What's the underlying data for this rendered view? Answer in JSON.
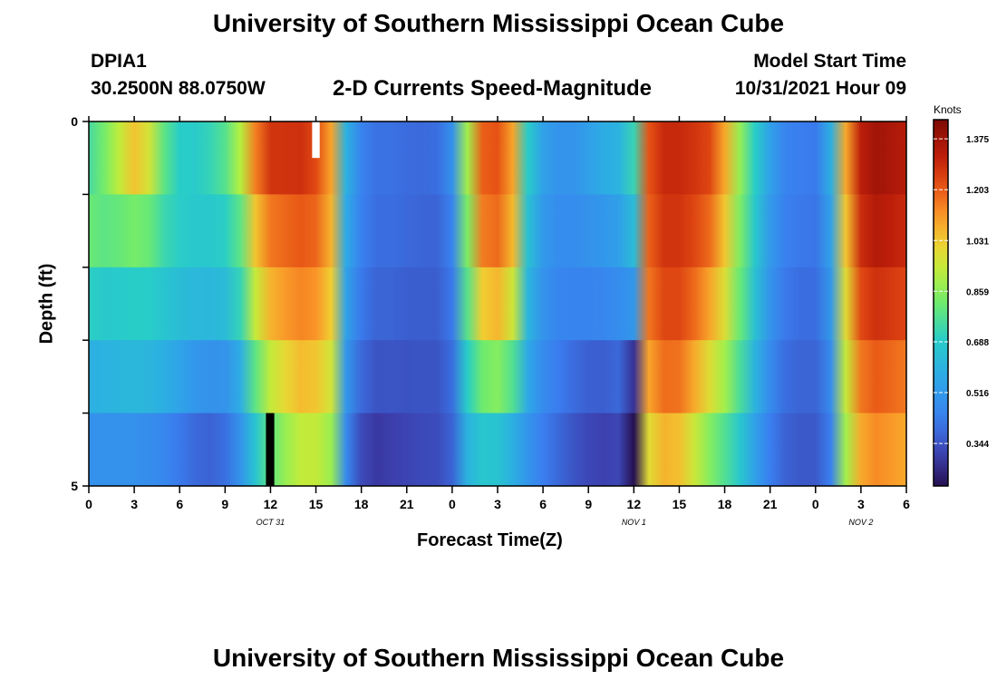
{
  "page": {
    "title": "University of Southern Mississippi Ocean Cube",
    "footer_title": "University of Southern Mississippi Ocean Cube"
  },
  "station": {
    "id": "DPIA1",
    "coords": "30.2500N  88.0750W"
  },
  "model": {
    "label": "Model Start Time",
    "value": "10/31/2021 Hour 09"
  },
  "chart_data": {
    "type": "heatmap",
    "title": "2-D Currents Speed-Magnitude",
    "xlabel": "Forecast Time(Z)",
    "ylabel": "Depth (ft)",
    "x_hours_since_start": [
      0,
      54
    ],
    "x_ticks": [
      "0",
      "3",
      "6",
      "9",
      "12",
      "15",
      "18",
      "21",
      "0",
      "3",
      "6",
      "9",
      "12",
      "15",
      "18",
      "21",
      "0",
      "3",
      "6"
    ],
    "date_labels": [
      {
        "label": "OCT 31",
        "hour": 12
      },
      {
        "label": "NOV 1",
        "hour": 36
      },
      {
        "label": "NOV 2",
        "hour": 51
      }
    ],
    "y_range_ft": [
      0,
      5
    ],
    "y_tick_labels": [
      "0",
      "5"
    ],
    "depth_levels_ft": [
      0,
      1,
      2,
      3,
      4,
      5
    ],
    "colorbar": {
      "label": "Knots",
      "ticks": [
        "1.375",
        "1.203",
        "1.031",
        "0.859",
        "0.688",
        "0.516",
        "0.344"
      ],
      "tick_values": [
        1.375,
        1.203,
        1.031,
        0.859,
        0.688,
        0.516,
        0.344
      ],
      "range": [
        0.2,
        1.44
      ]
    },
    "hours": [
      0,
      1,
      2,
      3,
      4,
      5,
      6,
      7,
      8,
      9,
      10,
      11,
      12,
      13,
      14,
      15,
      16,
      17,
      18,
      19,
      20,
      21,
      22,
      23,
      24,
      25,
      26,
      27,
      28,
      29,
      30,
      31,
      32,
      33,
      34,
      35,
      36,
      37,
      38,
      39,
      40,
      41,
      42,
      43,
      44,
      45,
      46,
      47,
      48,
      49,
      50,
      51,
      52,
      53,
      54
    ],
    "speed_knots_by_depth": [
      [
        0.72,
        0.83,
        0.96,
        1.1,
        1.0,
        0.8,
        0.69,
        0.69,
        0.73,
        0.8,
        0.95,
        1.18,
        1.3,
        1.3,
        1.3,
        1.24,
        1.1,
        0.6,
        0.45,
        0.4,
        0.4,
        0.39,
        0.39,
        0.4,
        0.5,
        0.9,
        1.2,
        1.22,
        1.1,
        0.7,
        0.55,
        0.5,
        0.5,
        0.55,
        0.6,
        0.62,
        0.75,
        1.22,
        1.3,
        1.3,
        1.28,
        1.25,
        1.1,
        0.88,
        0.7,
        0.55,
        0.45,
        0.43,
        0.42,
        0.6,
        1.1,
        1.33,
        1.38,
        1.36,
        1.34
      ],
      [
        0.84,
        0.82,
        0.84,
        0.87,
        0.84,
        0.75,
        0.71,
        0.69,
        0.69,
        0.71,
        0.8,
        1.06,
        1.18,
        1.2,
        1.22,
        1.2,
        1.08,
        0.58,
        0.44,
        0.4,
        0.4,
        0.39,
        0.38,
        0.38,
        0.45,
        0.85,
        1.18,
        1.2,
        1.08,
        0.66,
        0.52,
        0.48,
        0.48,
        0.5,
        0.52,
        0.55,
        0.65,
        1.2,
        1.28,
        1.28,
        1.25,
        1.2,
        1.05,
        0.85,
        0.68,
        0.52,
        0.44,
        0.42,
        0.41,
        0.55,
        1.05,
        1.3,
        1.35,
        1.33,
        1.3
      ],
      [
        0.73,
        0.7,
        0.7,
        0.71,
        0.71,
        0.68,
        0.66,
        0.65,
        0.65,
        0.67,
        0.76,
        0.98,
        1.1,
        1.14,
        1.16,
        1.14,
        1.04,
        0.55,
        0.42,
        0.38,
        0.38,
        0.37,
        0.37,
        0.37,
        0.42,
        0.8,
        1.08,
        1.12,
        1.0,
        0.62,
        0.5,
        0.46,
        0.46,
        0.47,
        0.48,
        0.5,
        0.58,
        1.18,
        1.25,
        1.25,
        1.2,
        1.12,
        1.0,
        0.82,
        0.66,
        0.5,
        0.42,
        0.4,
        0.4,
        0.52,
        1.0,
        1.25,
        1.3,
        1.28,
        1.26
      ],
      [
        0.62,
        0.63,
        0.64,
        0.65,
        0.64,
        0.62,
        0.58,
        0.54,
        0.52,
        0.52,
        0.6,
        0.82,
        0.97,
        1.03,
        1.08,
        1.06,
        0.98,
        0.52,
        0.4,
        0.36,
        0.36,
        0.35,
        0.35,
        0.35,
        0.4,
        0.72,
        0.86,
        0.9,
        0.82,
        0.58,
        0.48,
        0.43,
        0.4,
        0.38,
        0.38,
        0.4,
        0.3,
        1.12,
        1.2,
        1.2,
        1.12,
        1.02,
        0.92,
        0.78,
        0.62,
        0.48,
        0.4,
        0.38,
        0.38,
        0.48,
        0.95,
        1.18,
        1.22,
        1.2,
        1.18
      ],
      [
        0.52,
        0.52,
        0.52,
        0.52,
        0.51,
        0.49,
        0.45,
        0.42,
        0.41,
        0.43,
        0.52,
        0.7,
        0.84,
        0.92,
        0.98,
        0.97,
        0.9,
        0.48,
        0.34,
        0.3,
        0.31,
        0.32,
        0.33,
        0.33,
        0.38,
        0.62,
        0.7,
        0.7,
        0.62,
        0.52,
        0.44,
        0.4,
        0.36,
        0.33,
        0.32,
        0.33,
        0.2,
        1.02,
        1.1,
        1.08,
        0.98,
        0.88,
        0.8,
        0.7,
        0.56,
        0.44,
        0.38,
        0.36,
        0.36,
        0.44,
        0.9,
        1.1,
        1.15,
        1.13,
        1.1
      ],
      [
        0.4,
        0.4,
        0.4,
        0.4,
        0.38,
        0.36,
        0.32,
        0.28,
        0.26,
        0.3,
        0.42,
        0.55,
        0.66,
        0.74,
        0.8,
        0.84,
        0.82,
        0.42,
        0.29,
        0.26,
        0.28,
        0.3,
        0.31,
        0.32,
        0.36,
        0.55,
        0.58,
        0.56,
        0.5,
        0.44,
        0.38,
        0.34,
        0.31,
        0.29,
        0.27,
        0.28,
        0.1,
        0.9,
        0.98,
        0.95,
        0.86,
        0.76,
        0.68,
        0.6,
        0.48,
        0.4,
        0.35,
        0.34,
        0.34,
        0.4,
        0.86,
        1.04,
        1.08,
        1.06,
        1.04
      ]
    ],
    "missing_cells": [
      {
        "hour": 15,
        "depth_index": 0,
        "color": "white"
      }
    ],
    "black_cells": [
      {
        "hour": 12,
        "depth_index": 5
      }
    ]
  }
}
